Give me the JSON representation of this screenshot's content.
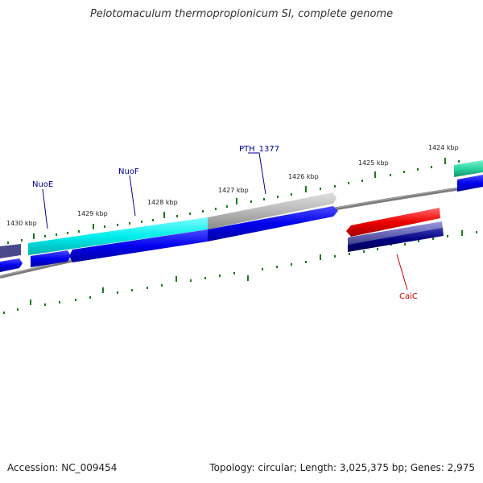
{
  "title": "Pelotomaculum thermopropionicum SI, complete genome",
  "footer": {
    "accession": "Accession: NC_009454",
    "summary": "Topology: circular; Length: 3,025,375 bp; Genes: 2,975"
  },
  "ticks": [
    {
      "label": "1430 kbp"
    },
    {
      "label": "1429 kbp"
    },
    {
      "label": "1428 kbp"
    },
    {
      "label": "1427 kbp"
    },
    {
      "label": "1426 kbp"
    },
    {
      "label": "1425 kbp"
    },
    {
      "label": "1424 kbp"
    }
  ],
  "genes": [
    {
      "name": "NuoE",
      "color": "#000099"
    },
    {
      "name": "NuoF",
      "color": "#000099"
    },
    {
      "name": "PTH_1377",
      "color": "#000099"
    },
    {
      "name": "CaiC",
      "color": "#cc0000"
    }
  ],
  "colors": {
    "backbone": "#808080",
    "tick": "#1a7a1a",
    "cds_forward": "#0000ee",
    "cds_cyan": "#00eeee",
    "cds_gray": "#b0b0b0",
    "cds_red": "#ee0000",
    "cds_slate": "#6a6ab8",
    "cds_navy": "#000080",
    "cds_green": "#2ad4a0"
  }
}
